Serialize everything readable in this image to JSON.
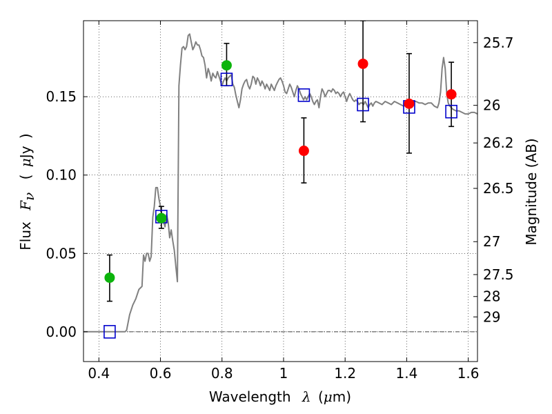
{
  "chart_data": {
    "type": "scatter",
    "xlabel": {
      "text": "Wavelength",
      "symbol": "λ",
      "unit_open": "(",
      "unit_mu": "μ",
      "unit_rest": "m)"
    },
    "ylabel": {
      "text": "Flux",
      "symbol": "F",
      "subscript": "ν",
      "unit_open": "(",
      "unit_mu": "μ",
      "unit_rest": "Jy",
      "unit_close": ")"
    },
    "y2label": "Magnitude (AB)",
    "xlim": [
      0.35,
      1.63
    ],
    "ylim": [
      -0.019,
      0.1985
    ],
    "grid": true,
    "xticks": [
      {
        "value": 0.4,
        "label": "0.4"
      },
      {
        "value": 0.6,
        "label": "0.6"
      },
      {
        "value": 0.8,
        "label": "0.8"
      },
      {
        "value": 1.0,
        "label": "1"
      },
      {
        "value": 1.2,
        "label": "1.2"
      },
      {
        "value": 1.4,
        "label": "1.4"
      },
      {
        "value": 1.6,
        "label": "1.6"
      }
    ],
    "yticks": [
      {
        "value": 0.0,
        "label": "0.00"
      },
      {
        "value": 0.05,
        "label": "0.05"
      },
      {
        "value": 0.1,
        "label": "0.10"
      },
      {
        "value": 0.15,
        "label": "0.15"
      }
    ],
    "y2ticks": [
      {
        "flux": 0.1845,
        "label": "25.7"
      },
      {
        "flux": 0.1445,
        "label": "26"
      },
      {
        "flux": 0.1205,
        "label": "26.2"
      },
      {
        "flux": 0.0915,
        "label": "26.5"
      },
      {
        "flux": 0.0575,
        "label": "27"
      },
      {
        "flux": 0.0365,
        "label": "27.5"
      },
      {
        "flux": 0.0225,
        "label": "28"
      },
      {
        "flux": 0.0095,
        "label": "29"
      }
    ],
    "colors": {
      "spectrum": "#808080",
      "green": "#0cb40c",
      "red": "#ff0000",
      "model_box": "#0000cc",
      "errorbar": "#000000",
      "zero_line": "#000000"
    },
    "series": [
      {
        "name": "model spectrum",
        "kind": "line",
        "points": [
          [
            0.35,
            0.0
          ],
          [
            0.485,
            0.0
          ],
          [
            0.49,
            0.001
          ],
          [
            0.5,
            0.011
          ],
          [
            0.51,
            0.017
          ],
          [
            0.52,
            0.021
          ],
          [
            0.53,
            0.027
          ],
          [
            0.54,
            0.029
          ],
          [
            0.545,
            0.049
          ],
          [
            0.55,
            0.045
          ],
          [
            0.555,
            0.05
          ],
          [
            0.56,
            0.05
          ],
          [
            0.565,
            0.045
          ],
          [
            0.57,
            0.048
          ],
          [
            0.575,
            0.073
          ],
          [
            0.58,
            0.08
          ],
          [
            0.585,
            0.092
          ],
          [
            0.59,
            0.092
          ],
          [
            0.595,
            0.085
          ],
          [
            0.6,
            0.08
          ],
          [
            0.605,
            0.073
          ],
          [
            0.61,
            0.07
          ],
          [
            0.615,
            0.067
          ],
          [
            0.62,
            0.075
          ],
          [
            0.625,
            0.07
          ],
          [
            0.63,
            0.06
          ],
          [
            0.635,
            0.065
          ],
          [
            0.64,
            0.058
          ],
          [
            0.645,
            0.052
          ],
          [
            0.65,
            0.042
          ],
          [
            0.655,
            0.032
          ],
          [
            0.66,
            0.157
          ],
          [
            0.665,
            0.17
          ],
          [
            0.67,
            0.181
          ],
          [
            0.675,
            0.182
          ],
          [
            0.68,
            0.18
          ],
          [
            0.685,
            0.182
          ],
          [
            0.69,
            0.189
          ],
          [
            0.695,
            0.19
          ],
          [
            0.7,
            0.185
          ],
          [
            0.705,
            0.18
          ],
          [
            0.71,
            0.182
          ],
          [
            0.715,
            0.185
          ],
          [
            0.72,
            0.183
          ],
          [
            0.725,
            0.183
          ],
          [
            0.73,
            0.18
          ],
          [
            0.735,
            0.176
          ],
          [
            0.74,
            0.175
          ],
          [
            0.745,
            0.17
          ],
          [
            0.75,
            0.162
          ],
          [
            0.755,
            0.168
          ],
          [
            0.76,
            0.165
          ],
          [
            0.765,
            0.16
          ],
          [
            0.77,
            0.165
          ],
          [
            0.775,
            0.163
          ],
          [
            0.78,
            0.162
          ],
          [
            0.785,
            0.166
          ],
          [
            0.79,
            0.163
          ],
          [
            0.795,
            0.16
          ],
          [
            0.8,
            0.157
          ],
          [
            0.805,
            0.16
          ],
          [
            0.81,
            0.162
          ],
          [
            0.815,
            0.16
          ],
          [
            0.82,
            0.162
          ],
          [
            0.825,
            0.163
          ],
          [
            0.83,
            0.164
          ],
          [
            0.835,
            0.158
          ],
          [
            0.84,
            0.156
          ],
          [
            0.845,
            0.151
          ],
          [
            0.85,
            0.147
          ],
          [
            0.855,
            0.143
          ],
          [
            0.86,
            0.148
          ],
          [
            0.865,
            0.155
          ],
          [
            0.87,
            0.158
          ],
          [
            0.875,
            0.16
          ],
          [
            0.88,
            0.161
          ],
          [
            0.885,
            0.157
          ],
          [
            0.89,
            0.155
          ],
          [
            0.895,
            0.158
          ],
          [
            0.9,
            0.163
          ],
          [
            0.905,
            0.162
          ],
          [
            0.91,
            0.158
          ],
          [
            0.915,
            0.162
          ],
          [
            0.92,
            0.16
          ],
          [
            0.925,
            0.157
          ],
          [
            0.93,
            0.16
          ],
          [
            0.935,
            0.158
          ],
          [
            0.94,
            0.155
          ],
          [
            0.945,
            0.158
          ],
          [
            0.95,
            0.156
          ],
          [
            0.955,
            0.154
          ],
          [
            0.96,
            0.158
          ],
          [
            0.965,
            0.156
          ],
          [
            0.97,
            0.154
          ],
          [
            0.975,
            0.157
          ],
          [
            0.98,
            0.159
          ],
          [
            0.985,
            0.161
          ],
          [
            0.99,
            0.162
          ],
          [
            0.995,
            0.16
          ],
          [
            1.0,
            0.157
          ],
          [
            1.005,
            0.153
          ],
          [
            1.01,
            0.152
          ],
          [
            1.015,
            0.155
          ],
          [
            1.02,
            0.158
          ],
          [
            1.025,
            0.156
          ],
          [
            1.03,
            0.153
          ],
          [
            1.035,
            0.15
          ],
          [
            1.04,
            0.154
          ],
          [
            1.045,
            0.157
          ],
          [
            1.05,
            0.155
          ],
          [
            1.055,
            0.152
          ],
          [
            1.06,
            0.15
          ],
          [
            1.065,
            0.148
          ],
          [
            1.07,
            0.15
          ],
          [
            1.075,
            0.148
          ],
          [
            1.08,
            0.15
          ],
          [
            1.085,
            0.152
          ],
          [
            1.09,
            0.15
          ],
          [
            1.095,
            0.147
          ],
          [
            1.1,
            0.145
          ],
          [
            1.105,
            0.147
          ],
          [
            1.11,
            0.148
          ],
          [
            1.115,
            0.143
          ],
          [
            1.12,
            0.15
          ],
          [
            1.125,
            0.155
          ],
          [
            1.13,
            0.153
          ],
          [
            1.135,
            0.15
          ],
          [
            1.14,
            0.152
          ],
          [
            1.145,
            0.154
          ],
          [
            1.15,
            0.154
          ],
          [
            1.155,
            0.153
          ],
          [
            1.16,
            0.155
          ],
          [
            1.165,
            0.154
          ],
          [
            1.17,
            0.152
          ],
          [
            1.175,
            0.153
          ],
          [
            1.18,
            0.152
          ],
          [
            1.185,
            0.15
          ],
          [
            1.19,
            0.152
          ],
          [
            1.195,
            0.153
          ],
          [
            1.2,
            0.15
          ],
          [
            1.205,
            0.147
          ],
          [
            1.21,
            0.15
          ],
          [
            1.215,
            0.152
          ],
          [
            1.22,
            0.15
          ],
          [
            1.225,
            0.148
          ],
          [
            1.23,
            0.147
          ],
          [
            1.235,
            0.148
          ],
          [
            1.24,
            0.147
          ],
          [
            1.245,
            0.145
          ],
          [
            1.25,
            0.146
          ],
          [
            1.255,
            0.146
          ],
          [
            1.26,
            0.145
          ],
          [
            1.265,
            0.147
          ],
          [
            1.27,
            0.145
          ],
          [
            1.275,
            0.143
          ],
          [
            1.28,
            0.145
          ],
          [
            1.285,
            0.146
          ],
          [
            1.29,
            0.144
          ],
          [
            1.295,
            0.146
          ],
          [
            1.3,
            0.147
          ],
          [
            1.31,
            0.146
          ],
          [
            1.32,
            0.145
          ],
          [
            1.33,
            0.147
          ],
          [
            1.34,
            0.146
          ],
          [
            1.35,
            0.145
          ],
          [
            1.36,
            0.147
          ],
          [
            1.37,
            0.146
          ],
          [
            1.38,
            0.145
          ],
          [
            1.39,
            0.144
          ],
          [
            1.4,
            0.145
          ],
          [
            1.41,
            0.143
          ],
          [
            1.42,
            0.147
          ],
          [
            1.43,
            0.147
          ],
          [
            1.44,
            0.146
          ],
          [
            1.45,
            0.146
          ],
          [
            1.46,
            0.145
          ],
          [
            1.47,
            0.146
          ],
          [
            1.48,
            0.146
          ],
          [
            1.49,
            0.144
          ],
          [
            1.5,
            0.143
          ],
          [
            1.505,
            0.146
          ],
          [
            1.51,
            0.153
          ],
          [
            1.515,
            0.168
          ],
          [
            1.52,
            0.175
          ],
          [
            1.525,
            0.168
          ],
          [
            1.53,
            0.152
          ],
          [
            1.535,
            0.146
          ],
          [
            1.54,
            0.144
          ],
          [
            1.55,
            0.142
          ],
          [
            1.56,
            0.141
          ],
          [
            1.57,
            0.141
          ],
          [
            1.58,
            0.14
          ],
          [
            1.59,
            0.139
          ],
          [
            1.6,
            0.139
          ],
          [
            1.61,
            0.14
          ],
          [
            1.62,
            0.14
          ],
          [
            1.63,
            0.139
          ]
        ]
      },
      {
        "name": "green detections",
        "kind": "points",
        "points": [
          {
            "x": 0.435,
            "y": 0.0345,
            "err_low": 0.0195,
            "err_high": 0.049
          },
          {
            "x": 0.603,
            "y": 0.0725,
            "err_low": 0.066,
            "err_high": 0.08
          },
          {
            "x": 0.815,
            "y": 0.17,
            "err_low": 0.157,
            "err_high": 0.184
          }
        ]
      },
      {
        "name": "red detections",
        "kind": "points",
        "points": [
          {
            "x": 1.066,
            "y": 0.1155,
            "err_low": 0.095,
            "err_high": 0.1365
          },
          {
            "x": 1.258,
            "y": 0.171,
            "err_low": 0.134,
            "err_high": 0.1985
          },
          {
            "x": 1.408,
            "y": 0.1455,
            "err_low": 0.114,
            "err_high": 0.1775
          },
          {
            "x": 1.545,
            "y": 0.1515,
            "err_low": 0.131,
            "err_high": 0.172
          }
        ]
      },
      {
        "name": "model photometry",
        "kind": "boxes",
        "points": [
          {
            "x": 0.435,
            "y": 0.0
          },
          {
            "x": 0.603,
            "y": 0.0735
          },
          {
            "x": 0.815,
            "y": 0.161
          },
          {
            "x": 1.066,
            "y": 0.151
          },
          {
            "x": 1.258,
            "y": 0.145
          },
          {
            "x": 1.408,
            "y": 0.1435
          },
          {
            "x": 1.545,
            "y": 0.1405
          }
        ]
      }
    ]
  }
}
